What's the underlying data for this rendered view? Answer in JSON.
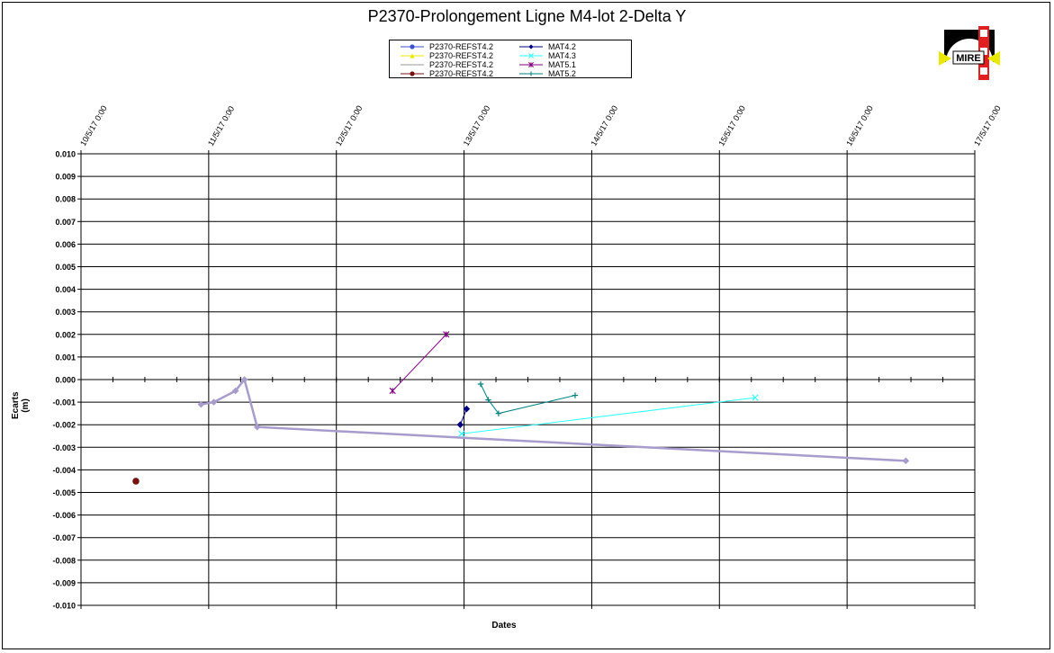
{
  "chart_data": {
    "type": "line",
    "title": "P2370-Prolongement  Ligne  M4-lot 2-Delta Y",
    "xlabel": "Dates",
    "ylabel": "Ecarts (m)",
    "x_ticks": [
      "10/5/17 0:00",
      "11/5/17 0:00",
      "12/5/17 0:00",
      "13/5/17 0:00",
      "14/5/17 0:00",
      "15/5/17 0:00",
      "16/5/17 0:00",
      "17/5/17 0:00"
    ],
    "x_range_days": [
      10,
      17
    ],
    "y_ticks": [
      "0.010",
      "0.009",
      "0.008",
      "0.007",
      "0.006",
      "0.005",
      "0.004",
      "0.003",
      "0.002",
      "0.001",
      "0.000",
      "-0.001",
      "-0.002",
      "-0.003",
      "-0.004",
      "-0.005",
      "-0.006",
      "-0.007",
      "-0.008",
      "-0.009",
      "-0.010"
    ],
    "ylim": [
      -0.01,
      0.01
    ],
    "grid": true,
    "legend_position": "top-center",
    "series": [
      {
        "name": "P2370-REFST4.2",
        "color": "#3b4fd0",
        "marker": "circle",
        "points": [
          [
            10.43,
            -0.0045
          ]
        ]
      },
      {
        "name": "P2370-REFST4.2",
        "color": "#e8e800",
        "marker": "triangle",
        "points": [
          [
            10.43,
            -0.0045
          ]
        ]
      },
      {
        "name": "P2370-REFST4.2",
        "color": "#9a9a9a",
        "marker": "line",
        "points": [
          [
            10.43,
            -0.0045
          ]
        ]
      },
      {
        "name": "P2370-REFST4.2",
        "color": "#7a1010",
        "marker": "circle",
        "points": [
          [
            10.43,
            -0.0045
          ]
        ]
      },
      {
        "name": "MAT4.2",
        "color": "#000080",
        "marker": "diamond",
        "points": [
          [
            12.97,
            -0.002
          ],
          [
            13.02,
            -0.0013
          ]
        ]
      },
      {
        "name": "MAT4.3",
        "color": "#33ffff",
        "marker": "x",
        "points": [
          [
            12.98,
            -0.0024
          ],
          [
            15.28,
            -0.0008
          ]
        ]
      },
      {
        "name": "MAT5.1",
        "color": "#800080",
        "marker": "star",
        "points": [
          [
            12.44,
            -0.0005
          ],
          [
            12.86,
            0.002
          ]
        ]
      },
      {
        "name": "MAT5.2",
        "color": "#008080",
        "marker": "plus",
        "points": [
          [
            13.13,
            -0.0002
          ],
          [
            13.19,
            -0.0009
          ],
          [
            13.27,
            -0.0015
          ],
          [
            13.87,
            -0.0007
          ]
        ]
      },
      {
        "name": "",
        "color": "#a79ccb",
        "marker": "diamond",
        "width": 2.5,
        "points": [
          [
            10.94,
            -0.0011
          ],
          [
            11.04,
            -0.001
          ],
          [
            11.21,
            -0.0005
          ],
          [
            11.28,
            0.0
          ],
          [
            11.38,
            -0.0021
          ],
          [
            16.46,
            -0.0036
          ]
        ]
      }
    ]
  },
  "logo": {
    "text": "MIRE"
  }
}
